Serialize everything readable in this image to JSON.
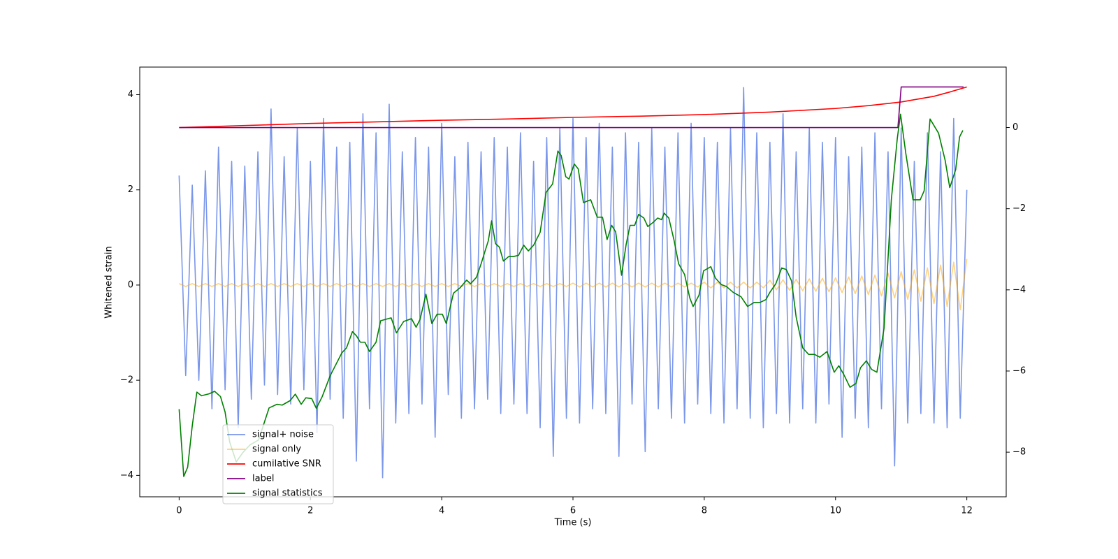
{
  "chart_data": {
    "type": "line",
    "xlabel": "Time (s)",
    "ylabel": "Whitened strain",
    "xlim": [
      -0.6,
      12.6
    ],
    "ylim": [
      -4.45,
      4.58
    ],
    "y2lim": [
      -9.1,
      1.49
    ],
    "xticks": [
      0,
      2,
      4,
      6,
      8,
      10,
      12
    ],
    "yticks": [
      {
        "value": -4,
        "label": "−4"
      },
      {
        "value": -2,
        "label": "−2"
      },
      0,
      2,
      4
    ],
    "y2ticks": [
      {
        "value": -8,
        "label": "−8"
      },
      {
        "value": -6,
        "label": "−6"
      },
      {
        "value": -4,
        "label": "−4"
      },
      {
        "value": -2,
        "label": "−2"
      },
      0
    ],
    "legend": "lower left",
    "x": [
      0,
      0.1,
      0.2,
      0.3,
      0.4,
      0.5,
      0.6,
      0.7,
      0.8,
      0.9,
      1,
      1.1,
      1.2,
      1.3,
      1.4,
      1.5,
      1.6,
      1.7,
      1.8,
      1.9,
      2,
      2.1,
      2.2,
      2.3,
      2.4,
      2.5,
      2.6,
      2.7,
      2.8,
      2.9,
      3,
      3.1,
      3.2,
      3.3,
      3.4,
      3.5,
      3.6,
      3.7,
      3.8,
      3.9,
      4,
      4.1,
      4.2,
      4.3,
      4.4,
      4.5,
      4.6,
      4.7,
      4.8,
      4.9,
      5,
      5.1,
      5.2,
      5.3,
      5.4,
      5.5,
      5.6,
      5.7,
      5.8,
      5.9,
      6,
      6.1,
      6.2,
      6.3,
      6.4,
      6.5,
      6.6,
      6.7,
      6.8,
      6.9,
      7,
      7.1,
      7.2,
      7.3,
      7.4,
      7.5,
      7.6,
      7.7,
      7.8,
      7.9,
      8,
      8.1,
      8.2,
      8.3,
      8.4,
      8.5,
      8.6,
      8.7,
      8.8,
      8.9,
      9,
      9.1,
      9.2,
      9.3,
      9.4,
      9.5,
      9.6,
      9.7,
      9.8,
      9.9,
      10,
      10.1,
      10.2,
      10.3,
      10.4,
      10.5,
      10.6,
      10.7,
      10.8,
      10.9,
      11,
      11.1,
      11.2,
      11.3,
      11.4,
      11.5,
      11.6,
      11.7,
      11.8,
      11.9,
      12
    ],
    "series": [
      {
        "name": "signal+ noise",
        "color": "#4169e1",
        "alpha": 0.7,
        "values": [
          2.3,
          -1.9,
          2.1,
          -2.0,
          2.4,
          -2.6,
          2.9,
          -2.2,
          2.6,
          -3.0,
          2.5,
          -2.4,
          2.8,
          -2.1,
          3.7,
          -2.3,
          2.7,
          -2.5,
          3.3,
          -2.2,
          2.6,
          -3.1,
          3.5,
          -2.4,
          2.9,
          -2.8,
          3.0,
          -3.7,
          3.6,
          -2.6,
          3.2,
          -4.05,
          3.8,
          -2.9,
          2.8,
          -2.7,
          3.1,
          -2.5,
          2.9,
          -3.2,
          3.4,
          -2.3,
          2.7,
          -2.8,
          3.0,
          -2.6,
          2.8,
          -2.4,
          3.1,
          -2.7,
          2.9,
          -2.5,
          3.2,
          -2.7,
          2.6,
          -3.0,
          3.1,
          -3.6,
          3.3,
          -2.8,
          3.5,
          -2.9,
          3.1,
          -2.6,
          3.4,
          -2.7,
          2.9,
          -3.6,
          3.2,
          -2.5,
          3.0,
          -3.5,
          3.3,
          -2.6,
          2.9,
          -2.8,
          3.2,
          -2.9,
          3.4,
          -2.5,
          3.1,
          -2.7,
          3.0,
          -2.9,
          3.3,
          -2.6,
          4.15,
          -2.8,
          3.2,
          -3.0,
          3.0,
          -2.7,
          3.6,
          -2.9,
          2.8,
          -2.6,
          3.3,
          -2.9,
          3.0,
          -2.5,
          3.1,
          -3.2,
          2.7,
          -2.8,
          2.9,
          -3.0,
          3.2,
          -2.6,
          2.8,
          -3.8,
          3.3,
          -2.9,
          2.6,
          -2.7,
          3.2,
          -2.9,
          2.8,
          -3.0,
          3.5,
          -2.8,
          2.0
        ]
      },
      {
        "name": "signal only",
        "color": "#ffa500",
        "alpha": 0.5,
        "values": [
          0.03,
          -0.03,
          0.03,
          -0.03,
          0.03,
          -0.03,
          0.03,
          -0.03,
          0.03,
          -0.03,
          0.03,
          -0.03,
          0.03,
          -0.03,
          0.03,
          -0.03,
          0.03,
          -0.03,
          0.03,
          -0.03,
          0.03,
          -0.03,
          0.03,
          -0.03,
          0.03,
          -0.03,
          0.03,
          -0.03,
          0.03,
          -0.03,
          0.03,
          -0.03,
          0.03,
          -0.03,
          0.03,
          -0.03,
          0.03,
          -0.03,
          0.03,
          -0.03,
          0.03,
          -0.03,
          0.03,
          -0.03,
          0.03,
          -0.03,
          0.03,
          -0.03,
          0.03,
          -0.03,
          0.03,
          -0.03,
          0.03,
          -0.03,
          0.03,
          -0.03,
          0.03,
          -0.03,
          0.03,
          -0.03,
          0.04,
          -0.04,
          0.04,
          -0.04,
          0.04,
          -0.04,
          0.04,
          -0.04,
          0.04,
          -0.04,
          0.04,
          -0.04,
          0.04,
          -0.04,
          0.04,
          -0.04,
          0.04,
          -0.04,
          0.04,
          -0.04,
          0.06,
          -0.06,
          0.06,
          -0.06,
          0.06,
          -0.06,
          0.06,
          -0.06,
          0.06,
          -0.06,
          0.1,
          -0.1,
          0.11,
          -0.11,
          0.12,
          -0.12,
          0.13,
          -0.13,
          0.14,
          -0.14,
          0.15,
          -0.16,
          0.17,
          -0.18,
          0.19,
          -0.2,
          0.21,
          -0.23,
          0.25,
          -0.27,
          0.28,
          -0.3,
          0.32,
          -0.34,
          0.36,
          -0.39,
          0.42,
          -0.45,
          0.48,
          -0.52,
          0.55
        ]
      },
      {
        "name": "cumilative SNR",
        "color": "#ff0000",
        "alpha": 1,
        "axis": "y2",
        "x": [
          0,
          1,
          2,
          3,
          4,
          5,
          6,
          7,
          8,
          9,
          10,
          10.5,
          11,
          11.5,
          11.75,
          12
        ],
        "values": [
          0,
          0.05,
          0.1,
          0.14,
          0.18,
          0.21,
          0.25,
          0.28,
          0.32,
          0.38,
          0.47,
          0.54,
          0.63,
          0.77,
          0.88,
          1.0
        ]
      },
      {
        "name": "label",
        "color": "#800080",
        "alpha": 1,
        "axis": "y2",
        "x": [
          0,
          10.95,
          11,
          11.95
        ],
        "values": [
          0,
          0,
          1,
          1
        ]
      },
      {
        "name": "signal statistics",
        "color": "#008000",
        "alpha": 1,
        "axis": "y2",
        "x": [
          0,
          0.07,
          0.13,
          0.2,
          0.27,
          0.34,
          0.46,
          0.54,
          0.63,
          0.7,
          0.77,
          0.87,
          0.97,
          1.08,
          1.21,
          1.37,
          1.49,
          1.57,
          1.69,
          1.77,
          1.86,
          1.93,
          2.02,
          2.09,
          2.18,
          2.3,
          2.48,
          2.55,
          2.64,
          2.7,
          2.76,
          2.83,
          2.9,
          3.0,
          3.07,
          3.23,
          3.31,
          3.42,
          3.54,
          3.61,
          3.67,
          3.76,
          3.85,
          3.93,
          4.01,
          4.07,
          4.18,
          4.28,
          4.38,
          4.44,
          4.53,
          4.6,
          4.71,
          4.76,
          4.82,
          4.88,
          4.94,
          5.02,
          5.09,
          5.17,
          5.25,
          5.32,
          5.4,
          5.5,
          5.59,
          5.69,
          5.77,
          5.82,
          5.89,
          5.94,
          6.02,
          6.08,
          6.16,
          6.27,
          6.37,
          6.45,
          6.52,
          6.59,
          6.65,
          6.74,
          6.81,
          6.87,
          6.94,
          7.0,
          7.08,
          7.14,
          7.22,
          7.29,
          7.35,
          7.39,
          7.46,
          7.54,
          7.61,
          7.7,
          7.78,
          7.83,
          7.92,
          7.99,
          8.1,
          8.17,
          8.26,
          8.34,
          8.44,
          8.56,
          8.66,
          8.76,
          8.85,
          8.94,
          9.0,
          9.09,
          9.18,
          9.25,
          9.33,
          9.4,
          9.5,
          9.59,
          9.68,
          9.76,
          9.87,
          9.98,
          10.05,
          10.13,
          10.22,
          10.31,
          10.38,
          10.47,
          10.55,
          10.63,
          10.74,
          10.85,
          10.94,
          10.99,
          11.07,
          11.18,
          11.29,
          11.35,
          11.44,
          11.57,
          11.67,
          11.74,
          11.83,
          11.89,
          11.94
        ],
        "values": [
          -6.94,
          -8.6,
          -8.37,
          -7.35,
          -6.52,
          -6.61,
          -6.56,
          -6.5,
          -6.63,
          -7.01,
          -7.75,
          -8.24,
          -8.01,
          -7.82,
          -7.7,
          -6.91,
          -6.82,
          -6.84,
          -6.73,
          -6.57,
          -6.82,
          -6.66,
          -6.68,
          -6.92,
          -6.63,
          -6.12,
          -5.55,
          -5.43,
          -5.03,
          -5.13,
          -5.29,
          -5.29,
          -5.52,
          -5.29,
          -4.76,
          -4.69,
          -5.06,
          -4.78,
          -4.71,
          -4.92,
          -4.73,
          -4.11,
          -4.83,
          -4.6,
          -4.6,
          -4.83,
          -4.08,
          -3.95,
          -3.76,
          -3.85,
          -3.69,
          -3.36,
          -2.79,
          -2.3,
          -2.86,
          -2.95,
          -3.29,
          -3.18,
          -3.18,
          -3.15,
          -2.9,
          -3.04,
          -2.9,
          -2.58,
          -1.6,
          -1.39,
          -0.58,
          -0.69,
          -1.21,
          -1.27,
          -0.9,
          -1.02,
          -1.85,
          -1.78,
          -2.21,
          -2.21,
          -2.76,
          -2.41,
          -2.57,
          -3.64,
          -2.88,
          -2.41,
          -2.41,
          -2.14,
          -2.23,
          -2.44,
          -2.34,
          -2.23,
          -2.27,
          -2.11,
          -2.23,
          -2.78,
          -3.36,
          -3.62,
          -4.2,
          -4.41,
          -4.13,
          -3.53,
          -3.43,
          -3.71,
          -3.87,
          -3.92,
          -4.06,
          -4.17,
          -4.41,
          -4.31,
          -4.31,
          -4.24,
          -4.06,
          -3.85,
          -3.46,
          -3.5,
          -3.78,
          -4.67,
          -5.43,
          -5.59,
          -5.59,
          -5.66,
          -5.52,
          -6.03,
          -5.87,
          -6.1,
          -6.4,
          -6.31,
          -5.92,
          -5.75,
          -5.96,
          -6.03,
          -4.94,
          -1.78,
          -0.28,
          0.33,
          -0.63,
          -1.78,
          -1.78,
          -1.56,
          0.21,
          -0.14,
          -0.81,
          -1.48,
          -1.04,
          -0.23,
          -0.07
        ]
      }
    ]
  }
}
